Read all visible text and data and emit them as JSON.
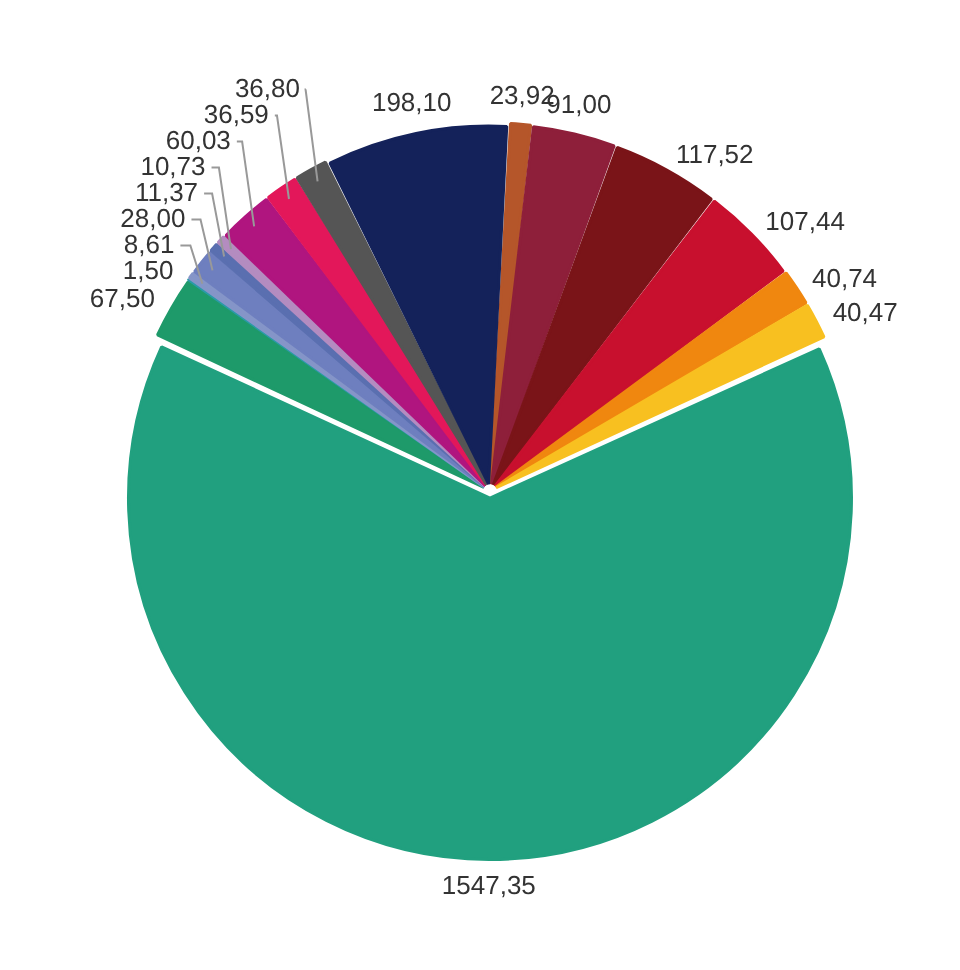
{
  "chart_data": {
    "type": "pie",
    "categories": [
      null,
      null,
      null,
      null,
      null,
      null,
      null,
      null,
      null,
      null,
      null,
      null,
      null,
      null,
      null,
      null,
      null
    ],
    "values": [
      23.92,
      91.0,
      117.52,
      107.44,
      40.74,
      40.47,
      1547.35,
      67.5,
      1.5,
      8.61,
      28.0,
      11.37,
      10.73,
      60.03,
      36.59,
      36.8,
      198.1
    ],
    "value_labels": [
      "23,92",
      "91,00",
      "117,52",
      "107,44",
      "40,74",
      "40,47",
      "1547,35",
      "67,50",
      "1,50",
      "8,61",
      "28,00",
      "11,37",
      "10,73",
      "60,03",
      "36,59",
      "36,80",
      "198,10"
    ],
    "colors": [
      "#b5562a",
      "#8e1f3a",
      "#7a1418",
      "#c8102e",
      "#f0870f",
      "#f8c020",
      "#21a07f",
      "#1e9a6a",
      "#2a9aa8",
      "#8595c8",
      "#6e7fbf",
      "#5a6fb0",
      "#b48cc0",
      "#b0157f",
      "#e3175a",
      "#555555",
      "#14225a"
    ]
  }
}
